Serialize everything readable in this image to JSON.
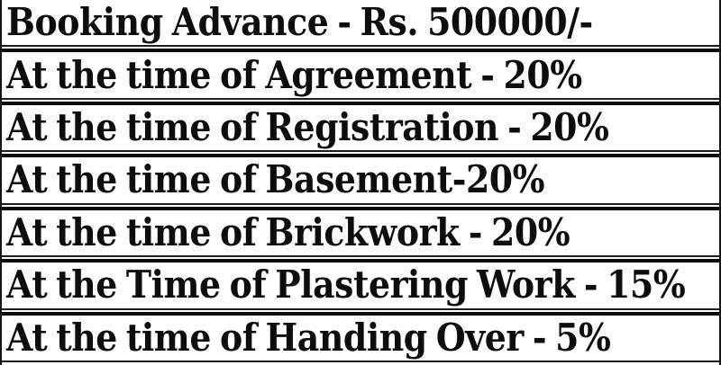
{
  "table": {
    "rows": [
      "Booking Advance - Rs. 500000/-",
      "At the time of Agreement - 20%",
      "At the time of Registration - 20%",
      "At the time of Basement-20%",
      "At the time of Brickwork - 20%",
      "At the Time of Plastering Work - 15%",
      "At the time of Handing Over - 5%"
    ]
  },
  "colors": {
    "text": "#0d0d0c",
    "rule_thick": "#0a0a0a",
    "rule_thin": "#1e1e1e",
    "background": "#ffffff"
  }
}
